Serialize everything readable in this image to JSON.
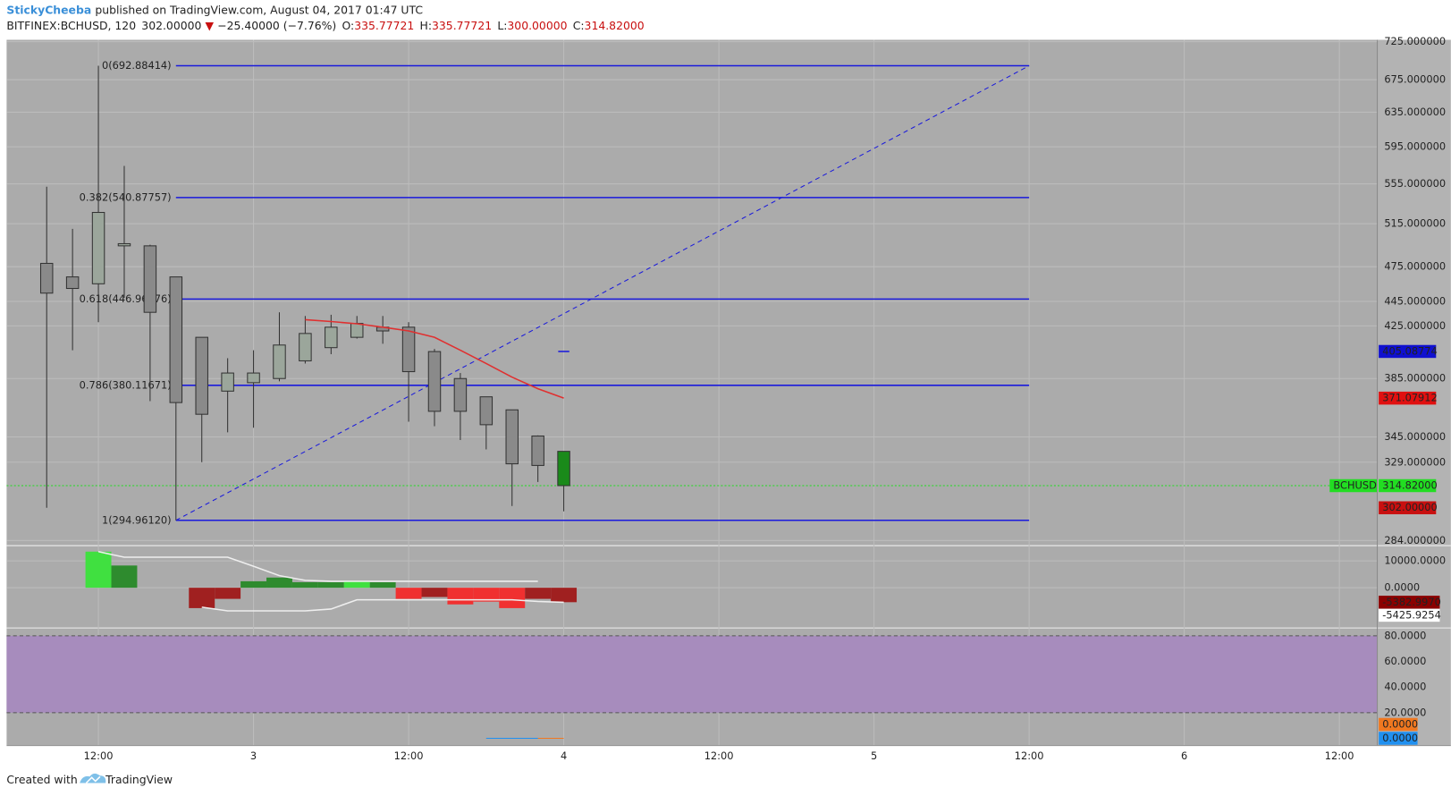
{
  "chart_data": {
    "type": "candlestick",
    "header": {
      "author": "StickyCheeba",
      "published": "published on TradingView.com, August 04, 2017 01:47 UTC",
      "symbol": "BITFINEX:BCHUSD, 120",
      "last": "302.00000",
      "arrow": "▼",
      "change": "−25.40000 (−7.76%)",
      "ohlc": [
        {
          "label": "O:",
          "text": "335.77721"
        },
        {
          "label": "H:",
          "text": "335.77721"
        },
        {
          "label": "L:",
          "text": "300.00000"
        },
        {
          "label": "C:",
          "text": "314.82000"
        }
      ]
    },
    "open": [
      478,
      466,
      460,
      494,
      494,
      466,
      416,
      376,
      382,
      385,
      398,
      408,
      416,
      424,
      424,
      405,
      385,
      372,
      363,
      345.6,
      335.77721
    ],
    "high": [
      552,
      510,
      692.88414,
      574,
      495,
      466,
      416,
      400,
      406,
      436,
      433,
      434,
      433,
      433,
      428,
      407,
      389,
      372,
      363,
      346,
      335.77721
    ],
    "low": [
      302,
      406,
      428,
      448,
      369,
      294.9612,
      329,
      348,
      351,
      383,
      396,
      403,
      415,
      411,
      355,
      352,
      343,
      337,
      303,
      317,
      300
    ],
    "close": [
      452,
      456,
      526,
      496,
      436,
      368,
      360,
      389,
      389,
      410,
      419,
      424,
      427,
      421,
      390,
      362,
      362,
      353,
      328,
      327,
      314.82
    ],
    "up_color": "#9ba69b",
    "down_color": "#8a8a8a",
    "current_color": "#1a8a1a",
    "log_scale": true,
    "ylim": [
      282,
      727.5
    ],
    "yticks": [
      {
        "value": 725,
        "label": "725.000000"
      },
      {
        "value": 675,
        "label": "675.000000"
      },
      {
        "value": 635,
        "label": "635.000000"
      },
      {
        "value": 595,
        "label": "595.000000"
      },
      {
        "value": 555,
        "label": "555.000000"
      },
      {
        "value": 515,
        "label": "515.000000"
      },
      {
        "value": 475,
        "label": "475.000000"
      },
      {
        "value": 445,
        "label": "445.000000"
      },
      {
        "value": 425,
        "label": "425.000000"
      },
      {
        "value": 385,
        "label": "385.000000"
      },
      {
        "value": 345,
        "label": "345.000000"
      },
      {
        "value": 329,
        "label": "329.000000"
      },
      {
        "value": 284,
        "label": "284.000000"
      }
    ],
    "xlim": [
      -1.55,
      51.45
    ],
    "xticks": [
      {
        "value": 2,
        "label": "12:00"
      },
      {
        "value": 8,
        "label": "3"
      },
      {
        "value": 14,
        "label": "12:00"
      },
      {
        "value": 20,
        "label": "4"
      },
      {
        "value": 26,
        "label": "12:00"
      },
      {
        "value": 32,
        "label": "5"
      },
      {
        "value": 38,
        "label": "12:00"
      },
      {
        "value": 44,
        "label": "6"
      },
      {
        "value": 50,
        "label": "12:00"
      }
    ],
    "grid": true,
    "fib": {
      "start": 5,
      "end": 38,
      "color": "#1a1adc",
      "levels": [
        {
          "value": 692.88414,
          "label": "0(692.88414)"
        },
        {
          "value": 540.87757,
          "label": "0.382(540.87757)"
        },
        {
          "value": 446.96776,
          "label": "0.618(446.96776)"
        },
        {
          "value": 380.11671,
          "label": "0.786(380.11671)"
        },
        {
          "value": 294.9612,
          "label": "1(294.96120)"
        }
      ]
    },
    "ma": {
      "color": "#e03030",
      "values": [
        null,
        null,
        null,
        null,
        null,
        null,
        null,
        null,
        null,
        null,
        430,
        428.5,
        426.7,
        424,
        421,
        416,
        406,
        396,
        386,
        377.7,
        371.07912
      ]
    },
    "price_labels": [
      {
        "value": 405.08774,
        "color": "#1010d0"
      },
      {
        "value": 371.07912,
        "color": "#e01010"
      },
      {
        "value": 314.82,
        "label": "314.82000",
        "tag": "BCHUSD",
        "color": "#22dd22",
        "line": true
      },
      {
        "value": 302,
        "label": "302.00000",
        "color": "#c81010"
      }
    ],
    "marker": {
      "index": 20,
      "value": 405.08774,
      "color": "#1a1adc"
    },
    "volume": {
      "ylim": [
        -14480,
        15520
      ],
      "yticks": [
        {
          "value": 10000,
          "label": "10000.0000"
        },
        {
          "value": 0,
          "label": "0.0000"
        }
      ],
      "values": [
        null,
        null,
        13450,
        8280,
        null,
        null,
        -7586,
        -4140,
        2414,
        3800,
        2070,
        2070,
        2414,
        2070,
        -4140,
        -3450,
        -6200,
        -5170,
        -7586,
        -4140,
        -5382.997
      ],
      "colors": [
        null,
        null,
        "#40e040",
        "#2e8b2e",
        null,
        null,
        "#a02020",
        "#a02020",
        "#2e8b2e",
        "#2e8b2e",
        "#2e8b2e",
        "#2e8b2e",
        "#40e040",
        "#2e8b2e",
        "#f03030",
        "#a02020",
        "#f03030",
        "#f03030",
        "#f03030",
        "#a02020",
        "#a02020"
      ],
      "lines": [
        {
          "color": "#eeeeee",
          "values": [
            null,
            null,
            13450,
            11380,
            11380,
            11380,
            11380,
            11380,
            8000,
            4500,
            2760,
            2410,
            2410,
            2410,
            2410,
            2410,
            2410,
            2410,
            2410,
            2410,
            null
          ]
        },
        {
          "color": "#eeeeee",
          "values": [
            null,
            null,
            null,
            null,
            null,
            null,
            -7240,
            -8620,
            -8620,
            -8620,
            -8620,
            -7930,
            -4480,
            -4480,
            -4480,
            -4480,
            -4480,
            -4480,
            -4480,
            -5100,
            -5425.9254
          ]
        }
      ],
      "labels": [
        {
          "value": -5382.997,
          "label": "-5382.9970",
          "color": "#8b0000",
          "text_color": "#fff"
        },
        {
          "value": -5425.9254,
          "label": "-5425.9254",
          "color": "#ffffff",
          "text_color": "#222"
        }
      ]
    },
    "rsi": {
      "ylim": [
        -5.3,
        85
      ],
      "yticks": [
        {
          "value": 80,
          "label": "80.0000"
        },
        {
          "value": 60,
          "label": "60.0000"
        },
        {
          "value": 40,
          "label": "40.0000"
        },
        {
          "value": 20,
          "label": "20.0000"
        }
      ],
      "band": [
        20,
        80
      ],
      "band_color": "#a78cbd",
      "labels": [
        {
          "value": 0,
          "label": "0.0000",
          "color": "#f07820",
          "offset": -1
        },
        {
          "value": 0,
          "label": "0.0000",
          "color": "#2090f0",
          "offset": 0
        }
      ],
      "lines": [
        {
          "color": "#f07820",
          "from": 17,
          "to": 20,
          "value": 0
        },
        {
          "color": "#2090f0",
          "from": 17,
          "to": 19,
          "value": 0
        }
      ]
    },
    "footer": {
      "created": "Created with",
      "brand": "TradingView"
    }
  }
}
